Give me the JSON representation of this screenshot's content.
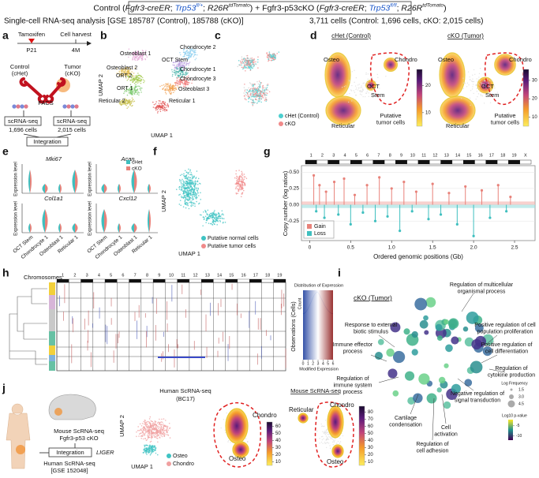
{
  "header": {
    "line1": [
      "Control (",
      "Fgfr3-creER",
      "; ",
      "Trp53",
      "fl/+",
      "; ",
      "R26R",
      "tdTomato",
      ") + Fgfr3-p53cKO (",
      "Fgfr3-creER",
      "; ",
      "Trp53",
      "fl/fl",
      "; ",
      "R26R",
      "tdTomato",
      ")"
    ],
    "subtitle": "Single-cell RNA-seq analysis [GSE 185787 (Control), 185788 (cKO)]",
    "cells": "3,711 cells (Control: 1,696 cells, cKO: 2,015 cells)"
  },
  "a": {
    "label": "a",
    "tamoxifen": "Tamoxifen",
    "harvest": "Cell harvest",
    "p21": "P21",
    "m4": "4M",
    "control": [
      "Control",
      "(cHet)"
    ],
    "tumor": [
      "Tumor",
      "(cKO)"
    ],
    "facs": "FACS",
    "seq_left": "scRNA-seq",
    "seq_right": "scRNA-seq",
    "cells_left": "1,696 cells",
    "cells_right": "2,015 cells",
    "integration": "Integration"
  },
  "b": {
    "label": "b",
    "clusters": [
      "Osteoblast 1",
      "Chondrocyte 2",
      "OCT Stem",
      "Chondrocyte 1",
      "Osteoblast 2",
      "ORT 2",
      "Chondrocyte 3",
      "ORT 1",
      "Osteoblast 3",
      "Reticular 2",
      "Reticular 1"
    ],
    "y_label": "UMAP 2",
    "x_label": "UMAP 1"
  },
  "c": {
    "label": "c",
    "legend": [
      "cHet (Control)",
      "cKO"
    ]
  },
  "d": {
    "label": "d",
    "left": {
      "title": "cHet (Control)",
      "osteo": "Osteo",
      "chondro": "Chondro",
      "oct": "OCT",
      "stem": "Stem",
      "reticular": "Reticular",
      "tumor": [
        "Putative",
        "tumor cells"
      ],
      "colorbar": {
        "lim": [
          5,
          26
        ],
        "ticks": [
          10,
          20
        ]
      }
    },
    "right": {
      "title": "cKO (Tumor)",
      "osteo": "Osteo",
      "chondro": "Chondro",
      "oct": "OCT",
      "stem": "Stem",
      "reticular": "Reticular",
      "tumor": [
        "Putative",
        "tumor cells"
      ],
      "colorbar": {
        "lim": [
          5,
          36
        ],
        "ticks": [
          10,
          20,
          30
        ]
      }
    }
  },
  "e": {
    "label": "e",
    "genes": [
      "Mki67",
      "Acan",
      "Col1a1",
      "Cxcl12"
    ],
    "y_label": "Expression level",
    "legend": [
      "cHet",
      "cKO"
    ],
    "categories": [
      "OCT Stem",
      "Chondrocyte 1",
      "Osteoblast 1",
      "Reticular 1"
    ]
  },
  "f": {
    "label": "f",
    "y_label": "UMAP 2",
    "x_label": "UMAP 1",
    "legend": [
      "Putative normal cells",
      "Putative tumor cells"
    ]
  },
  "g": {
    "label": "g",
    "chromosomes": [
      "1",
      "2",
      "3",
      "4",
      "5",
      "6",
      "7",
      "8",
      "9",
      "10",
      "11",
      "12",
      "13",
      "14",
      "15",
      "16",
      "17",
      "18",
      "19",
      "X"
    ],
    "y_label": "Copy number (log ratios)",
    "x_label": "Ordered genomic positions (Gb)",
    "ylim": [
      -0.55,
      0.6
    ],
    "yticks": [
      {
        "value": 0.5,
        "label": "0.50"
      },
      {
        "value": 0.25,
        "label": "0.25"
      },
      {
        "value": 0,
        "label": "0.00"
      },
      {
        "value": -0.25,
        "label": "-0.25"
      }
    ],
    "xlim": [
      -0.1,
      2.75
    ],
    "xticks": [
      0,
      0.5,
      {
        "value": 1,
        "label": "1.0"
      },
      1.5,
      {
        "value": 2,
        "label": "2.0"
      },
      2.5
    ],
    "series": [
      {
        "name": "Gain",
        "color": "#e8827a",
        "x": [
          0.05,
          0.12,
          0.2,
          0.3,
          0.42,
          0.55,
          0.7,
          0.85,
          1.0,
          1.15,
          1.3,
          1.5,
          1.7,
          1.9,
          2.1,
          2.3,
          2.45
        ],
        "values": [
          0.45,
          0.3,
          0.2,
          0.35,
          0.4,
          0.15,
          0.3,
          0.42,
          0.25,
          0.35,
          0.2,
          0.32,
          0.18,
          0.28,
          0.22,
          0.3,
          0.12
        ]
      },
      {
        "name": "Loss",
        "color": "#3fbfbf",
        "x": [
          0.08,
          0.18,
          0.35,
          0.5,
          0.65,
          0.8,
          0.95,
          1.1,
          1.25,
          1.45,
          1.6,
          1.8,
          2.0,
          2.2,
          2.4
        ],
        "values": [
          -0.1,
          -0.2,
          -0.15,
          -0.3,
          -0.12,
          -0.25,
          -0.18,
          -0.4,
          -0.1,
          -0.22,
          -0.15,
          -0.3,
          -0.48,
          -0.2,
          -0.1
        ]
      }
    ]
  },
  "h": {
    "label": "h",
    "chromosomes_title": "Chromosomes",
    "chromosomes": [
      "1",
      "2",
      "3",
      "4",
      "5",
      "6",
      "7",
      "8",
      "9",
      "10",
      "11",
      "12",
      "13",
      "14",
      "15",
      "16",
      "17",
      "18",
      "19"
    ],
    "y_label": "Observations (Cells)",
    "dist_title": "Distribution of Expression",
    "count": "Count",
    "mod_title": "Modified Expression",
    "colorbar": {
      "lim": [
        0,
        6
      ],
      "ticks": [
        0,
        1,
        2,
        3,
        4,
        5,
        6
      ]
    }
  },
  "i": {
    "label": "i",
    "title": "cKO (Tumor)",
    "terms": [
      [
        "Regulation of multicellular",
        "organismal process"
      ],
      [
        "Response to external",
        "biotic stimulus"
      ],
      [
        "Positive regulation of cell",
        "population proliferation"
      ],
      [
        "Immune effector",
        "process"
      ],
      [
        "Positive regulation of",
        "cell differentiation"
      ],
      [
        "Regulation of",
        "cytokine production"
      ],
      [
        "Regulation of",
        "immune system",
        "process"
      ],
      [
        "Negative regulation of",
        "signal transduction"
      ],
      [
        "Cartilage",
        "condensation"
      ],
      [
        "Cell",
        "activation"
      ],
      [
        "Regulation of",
        "cell adhesion"
      ]
    ],
    "size_title": "Log Frequency",
    "size_ticks": [
      1.5,
      {
        "value": 3,
        "label": "3.0"
      },
      4.5
    ],
    "p_title": "Log10 p-value",
    "p_lim": [
      -12,
      -2
    ],
    "p_ticks": [
      -5,
      -10
    ]
  },
  "j": {
    "label": "j",
    "mouse": [
      "Mouse ScRNA-seq",
      "Fgfr3-p53 cKO"
    ],
    "integration": "Integration",
    "liger": "LIGER",
    "human": [
      "Human ScRNA-seq",
      "[GSE 152048]"
    ],
    "human_title": [
      "Human ScRNA-seq",
      "(BC17)"
    ],
    "y_label": "UMAP 2",
    "x_label": "UMAP 1",
    "legend": [
      "Osteo",
      "Chondro"
    ],
    "human_chondro": "Chondro",
    "human_osteo": "Osteo",
    "human_colorbar": {
      "lim": [
        5,
        66
      ],
      "ticks": [
        10,
        20,
        30,
        40,
        50,
        60
      ]
    },
    "mouse_title": "Mouse ScRNA-seq",
    "mouse_reticular": "Reticular",
    "mouse_chondro": "Chondro",
    "mouse_osteo": "Osteo",
    "mouse_colorbar": {
      "lim": [
        5,
        88
      ],
      "ticks": [
        10,
        20,
        30,
        40,
        50,
        60,
        70,
        80
      ]
    }
  }
}
